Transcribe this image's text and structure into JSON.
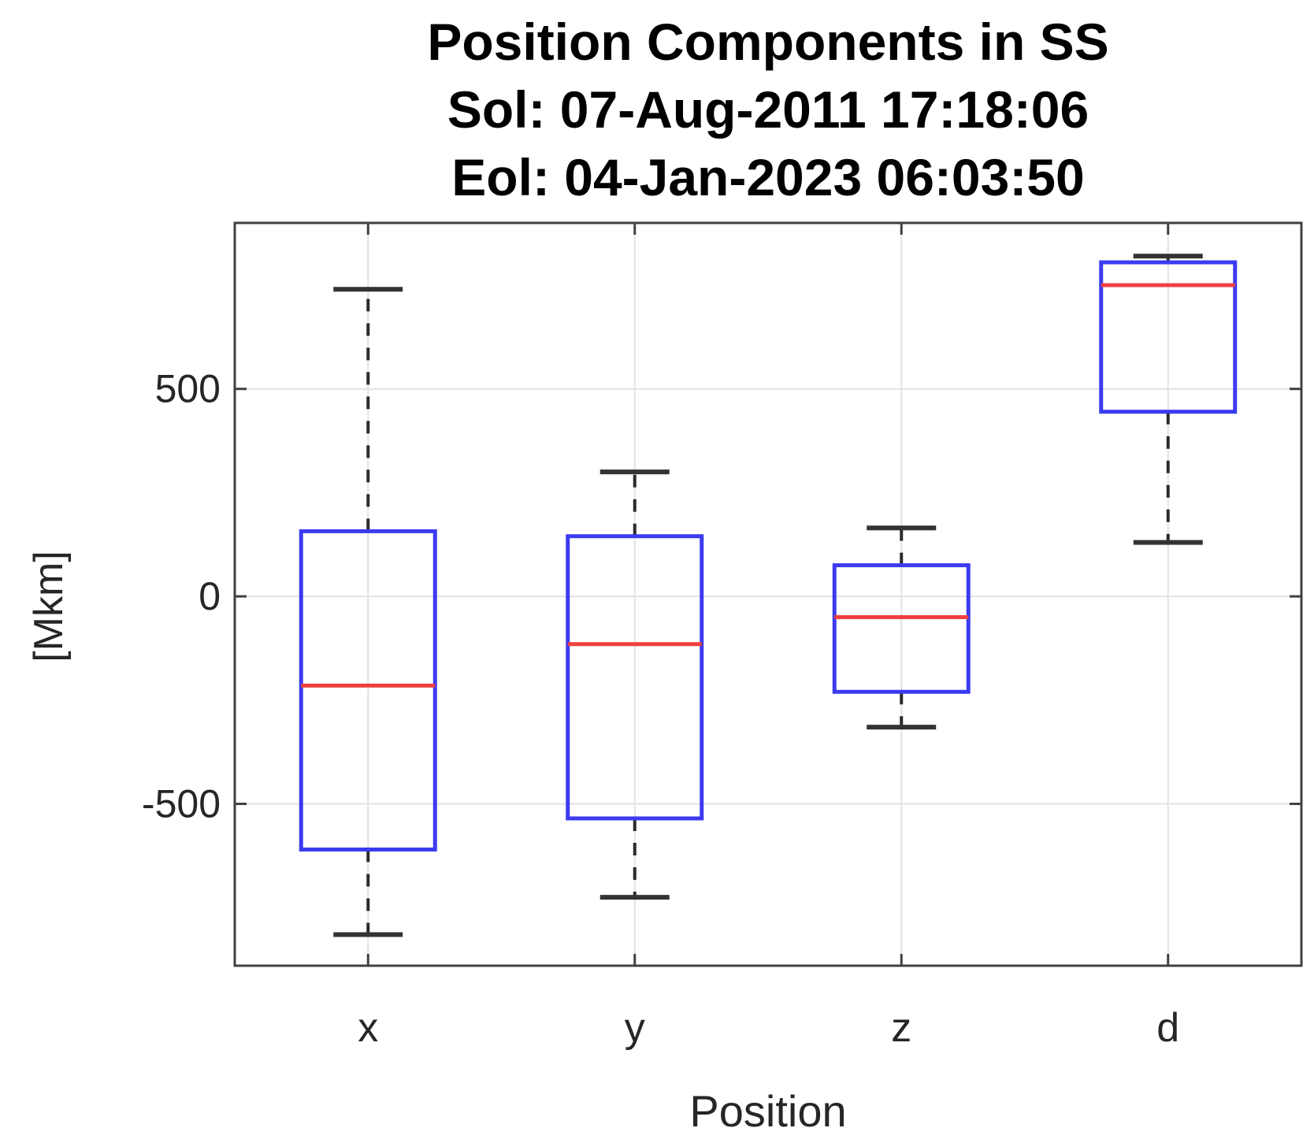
{
  "figure": {
    "title_line1": "Position Components in SS",
    "title_line2": "Sol: 07-Aug-2011 17:18:06",
    "title_line3": "Eol: 04-Jan-2023 06:03:50"
  },
  "chart_data": {
    "type": "boxplot",
    "title": "Position Components in SS",
    "subtitle_sol": "Sol: 07-Aug-2011 17:18:06",
    "subtitle_eol": "Eol: 04-Jan-2023 06:03:50",
    "xlabel": "Position",
    "ylabel": "[Mkm]",
    "categories": [
      "x",
      "y",
      "z",
      "d"
    ],
    "ylim": [
      -890,
      900
    ],
    "grid": true,
    "legend": "none",
    "yticks": [
      {
        "value": 500,
        "label": "500"
      },
      {
        "value": 0,
        "label": "0"
      },
      {
        "value": -500,
        "label": "-500"
      }
    ],
    "series": [
      {
        "category": "x",
        "whisker_low": -815,
        "q1": -610,
        "median": -215,
        "q3": 157,
        "whisker_high": 740
      },
      {
        "category": "y",
        "whisker_low": -725,
        "q1": -535,
        "median": -115,
        "q3": 145,
        "whisker_high": 300
      },
      {
        "category": "z",
        "whisker_low": -315,
        "q1": -230,
        "median": -50,
        "q3": 75,
        "whisker_high": 165
      },
      {
        "category": "d",
        "whisker_low": 130,
        "q1": 445,
        "median": 750,
        "q3": 805,
        "whisker_high": 820
      }
    ],
    "colors": {
      "box": "#3b3bf0",
      "median": "#ee4040",
      "whisker": "#2b2b2b",
      "cap": "#333333",
      "grid": "#e2e2e2",
      "axis": "#404040",
      "tick_label": "#262626",
      "background": "#ffffff"
    }
  }
}
